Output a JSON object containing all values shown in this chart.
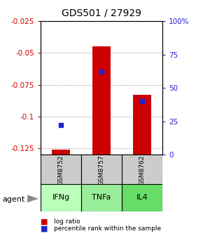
{
  "title": "GDS501 / 27929",
  "samples": [
    "GSM8752",
    "GSM8757",
    "GSM8762"
  ],
  "agents": [
    "IFNg",
    "TNFa",
    "IL4"
  ],
  "log_ratios": [
    -0.126,
    -0.045,
    -0.083
  ],
  "percentile_ranks": [
    22,
    62,
    40
  ],
  "ylim_left": [
    -0.13,
    -0.025
  ],
  "left_ticks": [
    -0.025,
    -0.05,
    -0.075,
    -0.1,
    -0.125
  ],
  "right_ticks": [
    100,
    75,
    50,
    25,
    0
  ],
  "bar_color": "#cc0000",
  "dot_color": "#2222cc",
  "agent_colors": [
    "#bbffbb",
    "#99ee99",
    "#66dd66"
  ],
  "sample_bg": "#cccccc",
  "left_label_color": "#cc0000",
  "right_label_color": "#2222cc",
  "title_fontsize": 10,
  "tick_fontsize": 7.5,
  "sample_fontsize": 6.5,
  "agent_fontsize": 8
}
